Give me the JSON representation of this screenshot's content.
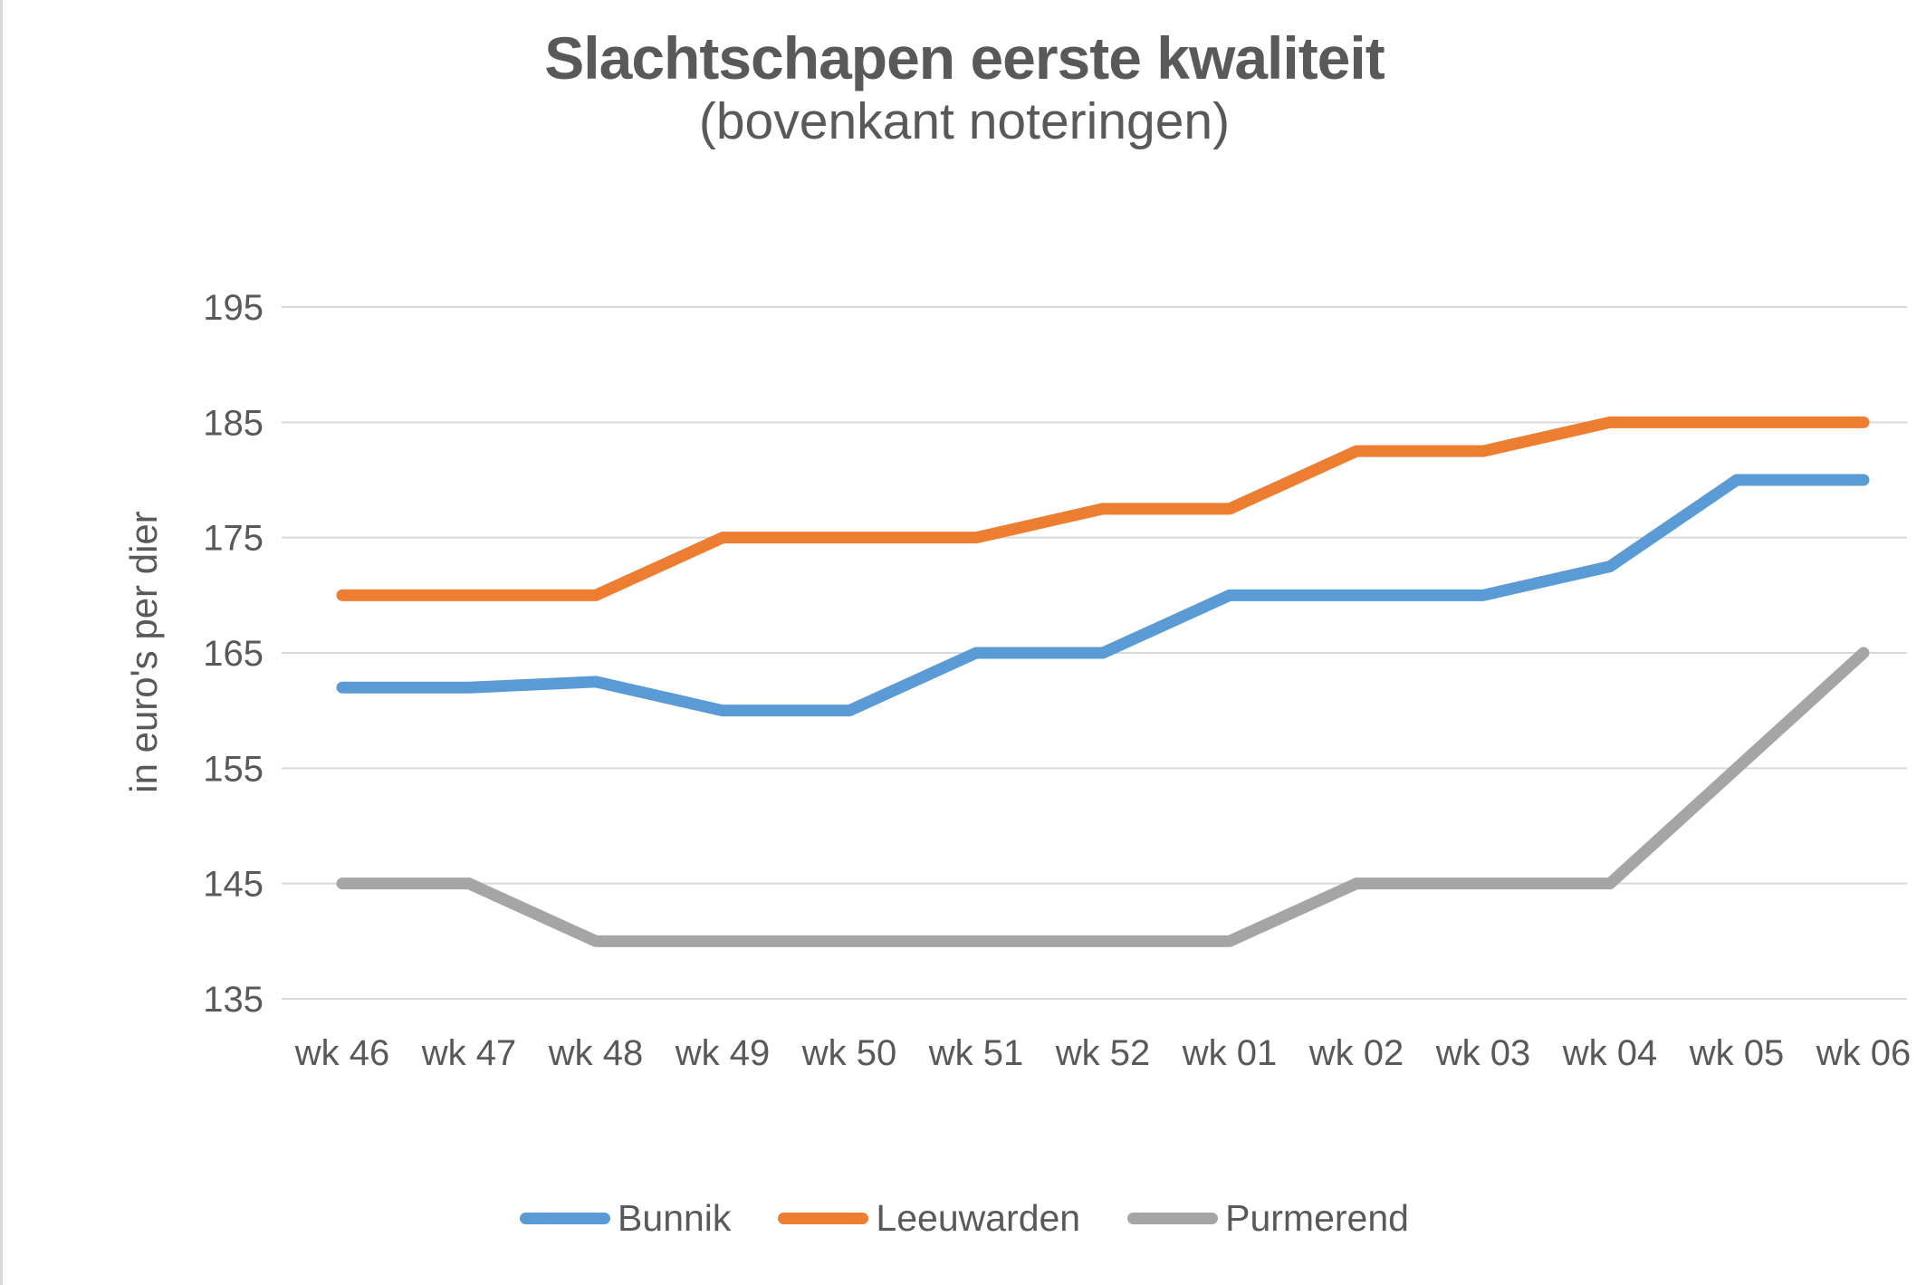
{
  "chart_data": {
    "type": "line",
    "title": "Slachtschapen eerste kwaliteit",
    "subtitle": "(bovenkant noteringen)",
    "ylabel": "in euro's per dier",
    "xlabel": "",
    "categories": [
      "wk 46",
      "wk 47",
      "wk 48",
      "wk 49",
      "wk 50",
      "wk 51",
      "wk 52",
      "wk 01",
      "wk 02",
      "wk 03",
      "wk 04",
      "wk 05",
      "wk 06"
    ],
    "series": [
      {
        "name": "Bunnik",
        "color": "#5B9BD5",
        "values": [
          162,
          162,
          162.5,
          160,
          160,
          165,
          165,
          170,
          170,
          170,
          172.5,
          180,
          180
        ]
      },
      {
        "name": "Leeuwarden",
        "color": "#ED7D31",
        "values": [
          170,
          170,
          170,
          175,
          175,
          175,
          177.5,
          177.5,
          182.5,
          182.5,
          185,
          185,
          185
        ]
      },
      {
        "name": "Purmerend",
        "color": "#A5A5A5",
        "values": [
          145,
          145,
          140,
          140,
          140,
          140,
          140,
          140,
          145,
          145,
          145,
          155,
          165
        ]
      }
    ],
    "ylim": [
      135,
      195
    ],
    "yticks": [
      195,
      185,
      175,
      165,
      155,
      145,
      135
    ],
    "grid": true,
    "legend_position": "bottom"
  },
  "style": {
    "background": "#FFFFFF",
    "grid_color": "#D9D9D9",
    "text_color": "#595959",
    "title_color": "#595959",
    "border_color": "#D9D9D9"
  }
}
